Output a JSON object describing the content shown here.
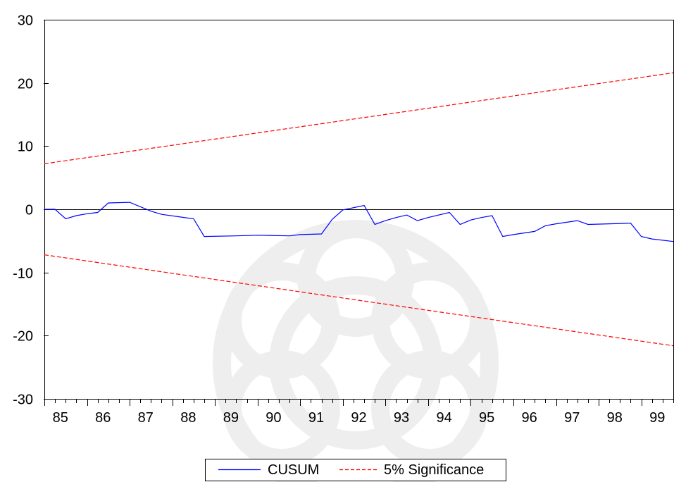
{
  "chart_data": {
    "type": "line",
    "title": "",
    "xlabel": "",
    "ylabel": "",
    "xlim": [
      1985.0,
      1999.75
    ],
    "ylim": [
      -30,
      30
    ],
    "yticks": [
      30,
      20,
      10,
      0,
      -10,
      -20,
      -30
    ],
    "ytick_labels": [
      "30",
      "20",
      "10",
      "0",
      "-10",
      "-20",
      "-30"
    ],
    "xtick_labels": [
      "85",
      "86",
      "87",
      "88",
      "89",
      "90",
      "91",
      "92",
      "93",
      "94",
      "95",
      "96",
      "97",
      "98",
      "99"
    ],
    "zero_line": true,
    "grid": false,
    "legend_position": "bottom-center",
    "series": [
      {
        "name": "CUSUM",
        "color": "#0000ff",
        "style": "solid",
        "points": [
          [
            1985.0,
            0.0
          ],
          [
            1985.25,
            0.0
          ],
          [
            1985.5,
            -1.5
          ],
          [
            1985.75,
            -1.0
          ],
          [
            1986.0,
            -0.7
          ],
          [
            1986.25,
            -0.5
          ],
          [
            1986.5,
            1.0
          ],
          [
            1987.0,
            1.1
          ],
          [
            1987.5,
            -0.3
          ],
          [
            1987.75,
            -0.8
          ],
          [
            1988.5,
            -1.5
          ],
          [
            1988.75,
            -4.3
          ],
          [
            1989.5,
            -4.2
          ],
          [
            1990.0,
            -4.1
          ],
          [
            1990.75,
            -4.2
          ],
          [
            1991.0,
            -4.0
          ],
          [
            1991.5,
            -3.9
          ],
          [
            1991.75,
            -1.6
          ],
          [
            1992.0,
            -0.1
          ],
          [
            1992.5,
            0.6
          ],
          [
            1992.75,
            -2.4
          ],
          [
            1993.0,
            -1.8
          ],
          [
            1993.25,
            -1.3
          ],
          [
            1993.5,
            -0.9
          ],
          [
            1993.75,
            -1.8
          ],
          [
            1994.0,
            -1.3
          ],
          [
            1994.5,
            -0.5
          ],
          [
            1994.75,
            -2.4
          ],
          [
            1995.0,
            -1.7
          ],
          [
            1995.25,
            -1.3
          ],
          [
            1995.5,
            -1.0
          ],
          [
            1995.75,
            -4.3
          ],
          [
            1996.0,
            -4.0
          ],
          [
            1996.5,
            -3.5
          ],
          [
            1996.75,
            -2.6
          ],
          [
            1997.0,
            -2.3
          ],
          [
            1997.5,
            -1.8
          ],
          [
            1997.75,
            -2.4
          ],
          [
            1998.25,
            -2.3
          ],
          [
            1998.75,
            -2.2
          ],
          [
            1999.0,
            -4.3
          ],
          [
            1999.25,
            -4.7
          ],
          [
            1999.75,
            -5.1
          ]
        ]
      },
      {
        "name": "5% Significance",
        "color": "#ff0000",
        "style": "dashed",
        "points": [
          [
            1985.0,
            7.2
          ],
          [
            1999.75,
            21.6
          ]
        ]
      },
      {
        "name": "",
        "color": "#ff0000",
        "style": "dashed",
        "points": [
          [
            1985.0,
            -7.2
          ],
          [
            1999.75,
            -21.6
          ]
        ]
      }
    ]
  }
}
